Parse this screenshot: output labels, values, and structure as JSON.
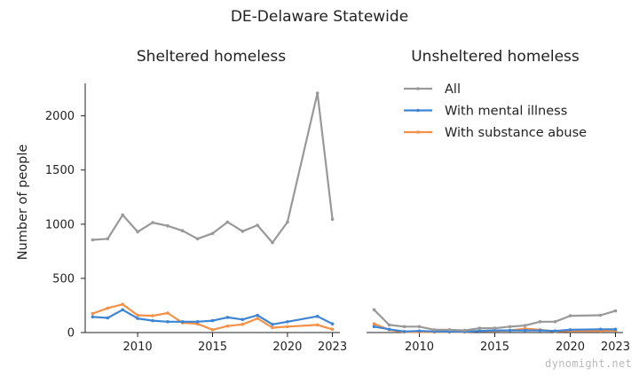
{
  "title": "DE-Delaware Statewide",
  "watermark": "dynomight.net",
  "ylabel": "Number of people",
  "legend": {
    "position": "top-right of right panel",
    "entries": [
      "All",
      "With mental illness",
      "With substance abuse"
    ]
  },
  "colors": {
    "All": "#999999",
    "With mental illness": "#3d85d4",
    "With substance abuse": "#f59047",
    "axis": "#222222"
  },
  "chart_data": [
    {
      "type": "line",
      "title": "Sheltered homeless",
      "ylabel": "Number of people",
      "xlim": [
        2006.5,
        2023.5
      ],
      "ylim": [
        0,
        2300
      ],
      "xticks": [
        2010,
        2015,
        2020,
        2023
      ],
      "yticks": [
        0,
        500,
        1000,
        1500,
        2000
      ],
      "series": [
        {
          "name": "All",
          "x": [
            2007,
            2008,
            2009,
            2010,
            2011,
            2012,
            2013,
            2014,
            2015,
            2016,
            2017,
            2018,
            2019,
            2020,
            2022,
            2023
          ],
          "values": [
            855,
            865,
            1085,
            930,
            1015,
            985,
            940,
            865,
            915,
            1020,
            935,
            990,
            830,
            1020,
            2210,
            1045
          ]
        },
        {
          "name": "With mental illness",
          "x": [
            2007,
            2008,
            2009,
            2010,
            2011,
            2012,
            2013,
            2014,
            2015,
            2016,
            2017,
            2018,
            2019,
            2020,
            2022,
            2023
          ],
          "values": [
            145,
            135,
            210,
            130,
            110,
            100,
            100,
            100,
            110,
            140,
            120,
            160,
            75,
            100,
            150,
            80
          ]
        },
        {
          "name": "With substance abuse",
          "x": [
            2007,
            2008,
            2009,
            2010,
            2011,
            2012,
            2013,
            2014,
            2015,
            2016,
            2017,
            2018,
            2019,
            2020,
            2022,
            2023
          ],
          "values": [
            175,
            225,
            260,
            160,
            155,
            180,
            90,
            80,
            25,
            60,
            75,
            130,
            45,
            55,
            70,
            30
          ]
        }
      ]
    },
    {
      "type": "line",
      "title": "Unsheltered homeless",
      "xlim": [
        2006.5,
        2023.5
      ],
      "ylim": [
        0,
        2300
      ],
      "xticks": [
        2010,
        2015,
        2020,
        2023
      ],
      "yticks": [],
      "series": [
        {
          "name": "All",
          "x": [
            2007,
            2008,
            2009,
            2010,
            2011,
            2012,
            2013,
            2014,
            2015,
            2016,
            2017,
            2018,
            2019,
            2020,
            2022,
            2023
          ],
          "values": [
            210,
            70,
            55,
            55,
            25,
            25,
            20,
            40,
            40,
            55,
            65,
            100,
            100,
            155,
            160,
            200
          ]
        },
        {
          "name": "With mental illness",
          "x": [
            2007,
            2008,
            2009,
            2010,
            2011,
            2012,
            2013,
            2014,
            2015,
            2016,
            2017,
            2018,
            2019,
            2020,
            2022,
            2023
          ],
          "values": [
            55,
            30,
            10,
            15,
            10,
            8,
            8,
            15,
            20,
            20,
            20,
            20,
            15,
            25,
            30,
            30
          ]
        },
        {
          "name": "With substance abuse",
          "x": [
            2007,
            2008,
            2009,
            2010,
            2011,
            2012,
            2013,
            2014,
            2015,
            2016,
            2017,
            2018,
            2019,
            2020,
            2022,
            2023
          ],
          "values": [
            80,
            25,
            5,
            5,
            5,
            5,
            5,
            15,
            15,
            20,
            35,
            25,
            10,
            15,
            15,
            20
          ]
        }
      ]
    }
  ]
}
